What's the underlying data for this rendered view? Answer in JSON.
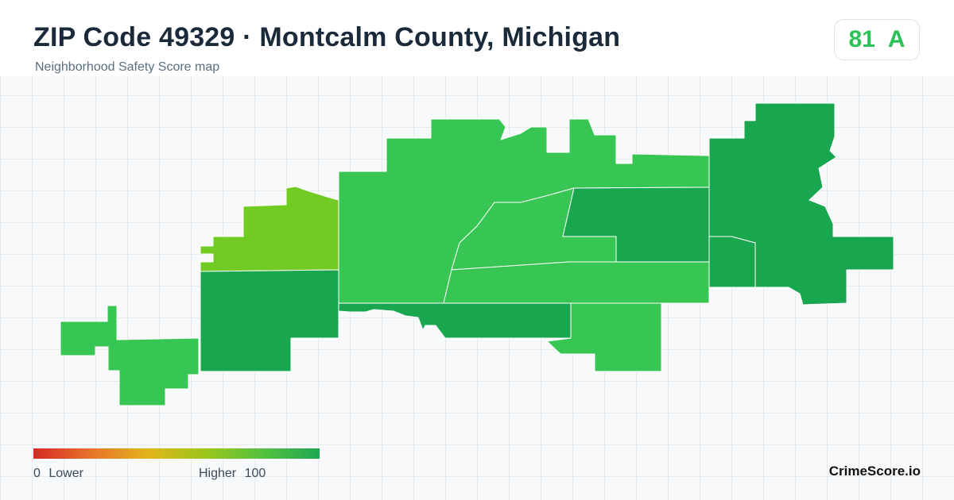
{
  "header": {
    "title": "ZIP Code 49329 · Montcalm County, Michigan",
    "subtitle": "Neighborhood Safety Score map"
  },
  "score": {
    "value": "81",
    "grade": "A",
    "color": "#2bc157"
  },
  "legend": {
    "min": "0",
    "min_label": "Lower",
    "max_label": "Higher",
    "max": "100",
    "colors": [
      "#d62a25",
      "#e8722a",
      "#e2b51c",
      "#9cc61a",
      "#55c23e",
      "#1fa653"
    ]
  },
  "brand": "CrimeScore.io",
  "map": {
    "region_colors": {
      "light_green": "#37c553",
      "dark_green": "#18a64e",
      "yellow_green": "#72cb22"
    }
  }
}
